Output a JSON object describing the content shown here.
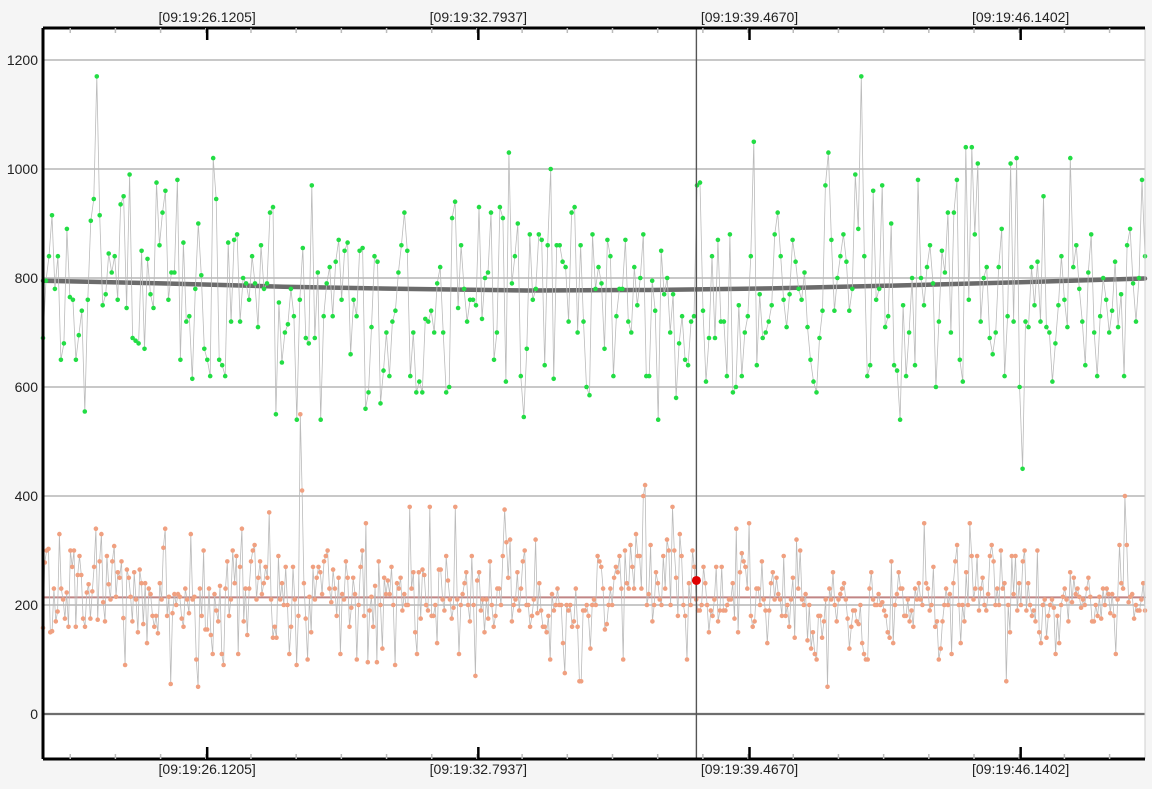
{
  "chart_data": {
    "type": "scatter",
    "title": "",
    "xlabel": "",
    "ylabel": "",
    "ylim": [
      0,
      1200
    ],
    "y_ticks": [
      "0",
      "200",
      "400",
      "600",
      "800",
      "1000",
      "1200"
    ],
    "x_tick_labels": [
      "[09:19:26.1205]",
      "[09:19:32.7937]",
      "[09:19:39.4670]",
      "[09:19:46.1402]"
    ],
    "x_tick_times": [
      26.1205,
      32.7937,
      39.467,
      46.1402
    ],
    "xlim": [
      22.08,
      49.2
    ],
    "grid": true,
    "legend": "none",
    "cursor_time": 38.16,
    "highlight_point": {
      "t": 38.16,
      "value": 245,
      "color": "#e00000"
    },
    "series": [
      {
        "color": "#22dd44",
        "line_color": "#bbbbbb",
        "values": [
          690,
          795,
          840,
          915,
          780,
          840,
          650,
          680,
          890,
          765,
          760,
          650,
          695,
          740,
          555,
          760,
          905,
          945,
          1170,
          915,
          750,
          770,
          845,
          810,
          840,
          760,
          935,
          950,
          745,
          990,
          690,
          685,
          680,
          850,
          670,
          835,
          770,
          745,
          975,
          860,
          920,
          960,
          760,
          810,
          810,
          980,
          650,
          865,
          720,
          730,
          615,
          780,
          900,
          805,
          670,
          650,
          620,
          1020,
          945,
          650,
          640,
          620,
          865,
          720,
          870,
          880,
          720,
          800,
          790,
          760,
          840,
          790,
          710,
          860,
          780,
          790,
          920,
          930,
          550,
          755,
          645,
          700,
          715,
          780,
          730,
          540,
          760,
          855,
          690,
          680,
          970,
          690,
          810,
          540,
          730,
          790,
          820,
          730,
          830,
          870,
          760,
          850,
          865,
          660,
          760,
          730,
          850,
          855,
          560,
          590,
          710,
          840,
          830,
          570,
          630,
          700,
          620,
          720,
          740,
          810,
          860,
          920,
          850,
          620,
          700,
          590,
          610,
          590,
          725,
          720,
          740,
          700,
          790,
          820,
          700,
          590,
          600,
          910,
          940,
          745,
          860,
          780,
          720,
          760,
          760,
          750,
          930,
          725,
          800,
          810,
          920,
          650,
          700,
          930,
          910,
          610,
          1030,
          790,
          840,
          900,
          620,
          545,
          670,
          880,
          760,
          780,
          880,
          870,
          640,
          860,
          1000,
          615,
          860,
          860,
          830,
          820,
          720,
          920,
          930,
          700,
          860,
          720,
          600,
          585,
          880,
          780,
          820,
          790,
          670,
          870,
          840,
          620,
          730,
          780,
          780,
          870,
          720,
          700,
          820,
          750,
          800,
          880,
          620,
          620,
          795,
          740,
          540,
          850,
          770,
          800,
          700,
          770,
          580,
          680,
          730,
          650,
          640,
          720,
          730,
          970,
          975,
          740,
          610,
          690,
          840,
          690,
          870,
          720,
          720,
          620,
          880,
          590,
          600,
          750,
          620,
          700,
          730,
          840,
          1050,
          640,
          770,
          690,
          700,
          720,
          750,
          880,
          920,
          840,
          760,
          710,
          770,
          870,
          830,
          780,
          760,
          810,
          710,
          650,
          610,
          590,
          690,
          740,
          970,
          1030,
          870,
          740,
          800,
          840,
          880,
          830,
          740,
          780,
          990,
          890,
          1170,
          840,
          620,
          640,
          960,
          760,
          780,
          970,
          710,
          730,
          900,
          640,
          630,
          540,
          750,
          620,
          700,
          800,
          640,
          980,
          800,
          750,
          820,
          860,
          790,
          600,
          720,
          850,
          810,
          920,
          700,
          920,
          980,
          650,
          610,
          1040,
          760,
          1040,
          880,
          1010,
          720,
          800,
          820,
          690,
          660,
          700,
          820,
          890,
          620,
          730,
          1010,
          720,
          1020,
          600,
          450,
          720,
          710,
          820,
          750,
          830,
          720,
          950,
          710,
          700,
          610,
          680,
          750,
          840,
          760,
          710,
          1020,
          820,
          860,
          780,
          720,
          640,
          810,
          880,
          700,
          620,
          730,
          800,
          760,
          700,
          740,
          830,
          710,
          770,
          620,
          860,
          890,
          790,
          720,
          800,
          980,
          840
        ]
      },
      {
        "color": "#f0a080",
        "line_color": "#bbbbbb",
        "values": [
          158,
          278,
          300,
          303,
          150,
          152,
          230,
          170,
          188,
          330,
          230,
          210,
          175,
          223,
          160,
          300,
          270,
          300,
          160,
          255,
          290,
          255,
          175,
          160,
          223,
          238,
          175,
          225,
          270,
          340,
          173,
          280,
          330,
          205,
          170,
          290,
          238,
          210,
          280,
          308,
          215,
          260,
          250,
          280,
          176,
          90,
          265,
          250,
          215,
          170,
          260,
          210,
          150,
          265,
          240,
          165,
          240,
          130,
          230,
          220,
          180,
          160,
          180,
          148,
          240,
          210,
          305,
          340,
          180,
          215,
          55,
          185,
          220,
          200,
          220,
          215,
          175,
          160,
          230,
          210,
          185,
          330,
          210,
          215,
          100,
          50,
          230,
          180,
          300,
          155,
          155,
          230,
          145,
          110,
          220,
          190,
          170,
          235,
          110,
          90,
          230,
          280,
          180,
          210,
          300,
          240,
          290,
          110,
          270,
          340,
          170,
          230,
          145,
          230,
          280,
          300,
          310,
          210,
          250,
          280,
          220,
          240,
          270,
          250,
          370,
          210,
          140,
          160,
          140,
          290,
          210,
          240,
          200,
          270,
          200,
          110,
          160,
          270,
          210,
          90,
          180,
          550,
          410,
          240,
          175,
          100,
          215,
          150,
          270,
          210,
          250,
          270,
          260,
          220,
          280,
          290,
          300,
          230,
          205,
          265,
          230,
          180,
          250,
          110,
          220,
          210,
          280,
          250,
          160,
          195,
          250,
          220,
          100,
          200,
          270,
          300,
          180,
          350,
          95,
          190,
          215,
          160,
          235,
          95,
          280,
          200,
          120,
          250,
          220,
          245,
          220,
          270,
          200,
          90,
          240,
          230,
          250,
          190,
          220,
          200,
          200,
          380,
          230,
          260,
          150,
          110,
          260,
          175,
          265,
          255,
          200,
          190,
          380,
          180,
          180,
          200,
          130,
          265,
          265,
          210,
          190,
          290,
          245,
          210,
          175,
          195,
          380,
          210,
          110,
          200,
          220,
          240,
          260,
          200,
          170,
          290,
          200,
          70,
          245,
          260,
          190,
          210,
          150,
          210,
          175,
          280,
          200,
          160,
          180,
          230,
          230,
          200,
          290,
          375,
          315,
          250,
          320,
          170,
          200,
          210,
          260,
          190,
          230,
          280,
          300,
          200,
          200,
          160,
          180,
          210,
          320,
          185,
          240,
          190,
          160,
          160,
          150,
          180,
          100,
          220,
          190,
          200,
          230,
          200,
          200,
          130,
          75,
          200,
          190,
          200,
          160,
          170,
          230,
          160,
          60,
          60,
          190,
          190,
          200,
          180,
          120,
          200,
          210,
          200,
          290,
          280,
          270,
          230,
          155,
          165,
          200,
          230,
          200,
          250,
          270,
          260,
          290,
          230,
          100,
          300,
          240,
          230,
          310,
          270,
          230,
          330,
          290,
          290,
          230,
          400,
          420,
          200,
          220,
          310,
          170,
          200,
          260,
          240,
          210,
          200,
          290,
          230,
          320,
          300,
          200,
          380,
          300,
          250,
          180,
          330,
          290,
          200,
          180,
          100,
          240,
          200,
          300,
          270,
          210,
          190,
          190,
          200,
          270,
          240,
          200,
          150,
          190,
          180,
          210,
          270,
          170,
          190,
          270,
          190,
          190,
          200,
          210,
          210,
          240,
          175,
          340,
          150,
          260,
          295,
          280,
          270,
          230,
          350,
          180,
          160,
          170,
          230,
          230,
          200,
          280,
          210,
          190,
          130,
          190,
          240,
          260,
          210,
          250,
          220,
          210,
          180,
          290,
          180,
          200,
          160,
          210,
          250,
          140,
          320,
          230,
          300,
          210,
          200,
          220,
          135,
          200,
          120,
          150,
          110,
          100,
          180,
          180,
          140,
          170,
          210,
          50,
          230,
          210,
          260,
          200,
          170,
          210,
          220,
          230,
          240,
          210,
          175,
          120,
          160,
          190,
          190,
          170,
          165,
          200,
          130,
          110,
          100,
          100,
          230,
          260,
          210,
          200,
          200,
          220,
          200,
          205,
          190,
          180,
          150,
          140,
          280,
          130,
          200,
          220,
          260,
          230,
          230,
          180,
          180,
          210,
          170,
          190,
          160,
          230,
          210,
          240,
          210,
          200,
          350,
          240,
          230,
          190,
          200,
          270,
          160,
          170,
          100,
          120,
          170,
          200,
          230,
          200,
          220,
          110,
          240,
          280,
          310,
          200,
          130,
          200,
          170,
          260,
          200,
          350,
          290,
          210,
          230,
          290,
          190,
          230,
          250,
          200,
          190,
          220,
          290,
          310,
          280,
          200,
          230,
          200,
          300,
          230,
          240,
          60,
          200,
          150,
          290,
          220,
          290,
          190,
          240,
          200,
          280,
          300,
          190,
          240,
          200,
          180,
          190,
          170,
          300,
          150,
          130,
          200,
          210,
          140,
          180,
          200,
          210,
          195,
          110,
          180,
          130,
          200,
          215,
          230,
          210,
          170,
          260,
          205,
          250,
          220,
          230,
          215,
          195,
          210,
          200,
          230,
          250,
          215,
          170,
          170,
          200,
          180,
          215,
          175,
          230,
          200,
          230,
          220,
          185,
          220,
          180,
          110,
          210,
          310,
          240,
          230,
          400,
          310,
          205,
          215,
          220,
          175,
          200,
          190,
          190,
          210,
          240,
          190
        ]
      }
    ],
    "trend_lines": [
      {
        "color": "#6b6b6b",
        "points": [
          [
            22.08,
            795
          ],
          [
            25,
            790
          ],
          [
            28,
            784
          ],
          [
            31,
            780
          ],
          [
            34,
            777
          ],
          [
            37,
            778
          ],
          [
            40,
            781
          ],
          [
            43,
            786
          ],
          [
            46,
            792
          ],
          [
            49.2,
            799
          ]
        ]
      },
      {
        "color": "#c08585",
        "points": [
          [
            22.08,
            214
          ],
          [
            49.2,
            214
          ]
        ]
      }
    ]
  }
}
